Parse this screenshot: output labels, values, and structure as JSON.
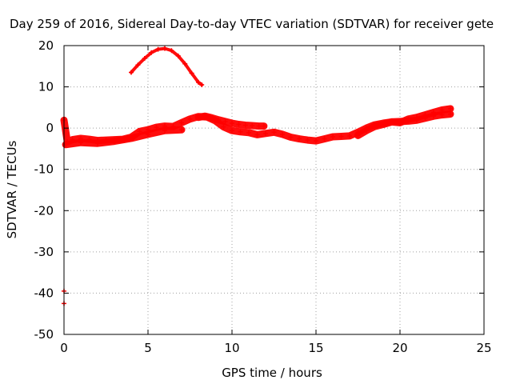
{
  "chart_data": {
    "type": "scatter",
    "title": "Day 259 of 2016, Sidereal Day-to-day VTEC variation (SDTVAR) for receiver gete",
    "xlabel": "GPS time / hours",
    "ylabel": "SDTVAR / TECUs",
    "xlim": [
      0,
      25
    ],
    "ylim": [
      -50,
      20
    ],
    "xticks": [
      0,
      5,
      10,
      15,
      20,
      25
    ],
    "yticks": [
      -50,
      -40,
      -30,
      -20,
      -10,
      0,
      10,
      20
    ],
    "grid": true,
    "legend": "none",
    "color": "#ff0000",
    "series": [
      {
        "x": [
          4.0,
          4.4,
          4.8,
          5.2,
          5.6,
          6.0,
          6.4,
          6.8,
          7.2,
          7.6,
          8.0,
          8.2
        ],
        "y": [
          13.5,
          15.3,
          16.9,
          18.3,
          19.1,
          19.3,
          18.8,
          17.5,
          15.6,
          13.3,
          11.1,
          10.5
        ]
      },
      {
        "x": [
          0.0,
          0.2,
          0.5,
          1.0,
          1.5,
          2.0,
          2.5,
          3.0,
          3.5,
          4.0,
          4.5,
          5.0,
          5.5,
          6.0,
          6.5,
          7.0,
          7.5,
          8.0,
          8.5,
          9.0,
          9.5,
          10.0,
          10.5,
          11.0,
          11.5,
          12.0,
          12.5,
          13.0,
          13.5,
          14.0,
          14.5,
          15.0,
          15.5,
          16.0,
          16.5,
          17.0,
          17.5,
          18.0,
          18.5,
          19.0,
          19.5,
          20.0,
          20.5,
          21.0,
          21.5,
          22.0,
          22.5,
          23.0
        ],
        "y": [
          1.9,
          -3.3,
          -2.8,
          -2.5,
          -2.7,
          -3.0,
          -2.9,
          -2.8,
          -2.7,
          -2.2,
          -0.8,
          -0.4,
          0.2,
          0.5,
          0.4,
          1.3,
          2.2,
          2.8,
          2.7,
          1.8,
          0.3,
          -0.6,
          -0.9,
          -1.1,
          -1.6,
          -1.3,
          -1.0,
          -1.5,
          -2.2,
          -2.6,
          -2.9,
          -3.1,
          -2.6,
          -2.1,
          -2.0,
          -1.9,
          -1.0,
          0.0,
          0.8,
          1.2,
          1.5,
          1.6,
          1.7,
          1.9,
          2.4,
          2.9,
          3.2,
          3.4
        ]
      },
      {
        "x": [
          8.0,
          8.4,
          8.8,
          9.2,
          9.6,
          10.0,
          10.4,
          10.8,
          11.2,
          11.6,
          11.9
        ],
        "y": [
          2.6,
          2.9,
          2.5,
          2.0,
          1.6,
          1.2,
          0.9,
          0.7,
          0.6,
          0.5,
          0.5
        ]
      },
      {
        "x": [
          0.1,
          1.0,
          2.0,
          3.0,
          4.0,
          5.0,
          6.0,
          7.0
        ],
        "y": [
          -4.0,
          -3.5,
          -3.7,
          -3.2,
          -2.5,
          -1.5,
          -0.6,
          -0.4
        ]
      },
      {
        "x": [
          17.5,
          18.0,
          18.5,
          19.0,
          19.5,
          20.0,
          20.5,
          21.0,
          21.5,
          22.0,
          22.5,
          23.0
        ],
        "y": [
          -1.8,
          -0.6,
          0.4,
          0.9,
          1.5,
          1.3,
          2.2,
          2.6,
          3.2,
          3.8,
          4.4,
          4.7
        ]
      },
      {
        "x": [
          0.0,
          0.0,
          0.0
        ],
        "y": [
          2.0,
          -39.5,
          -42.5
        ]
      }
    ]
  }
}
